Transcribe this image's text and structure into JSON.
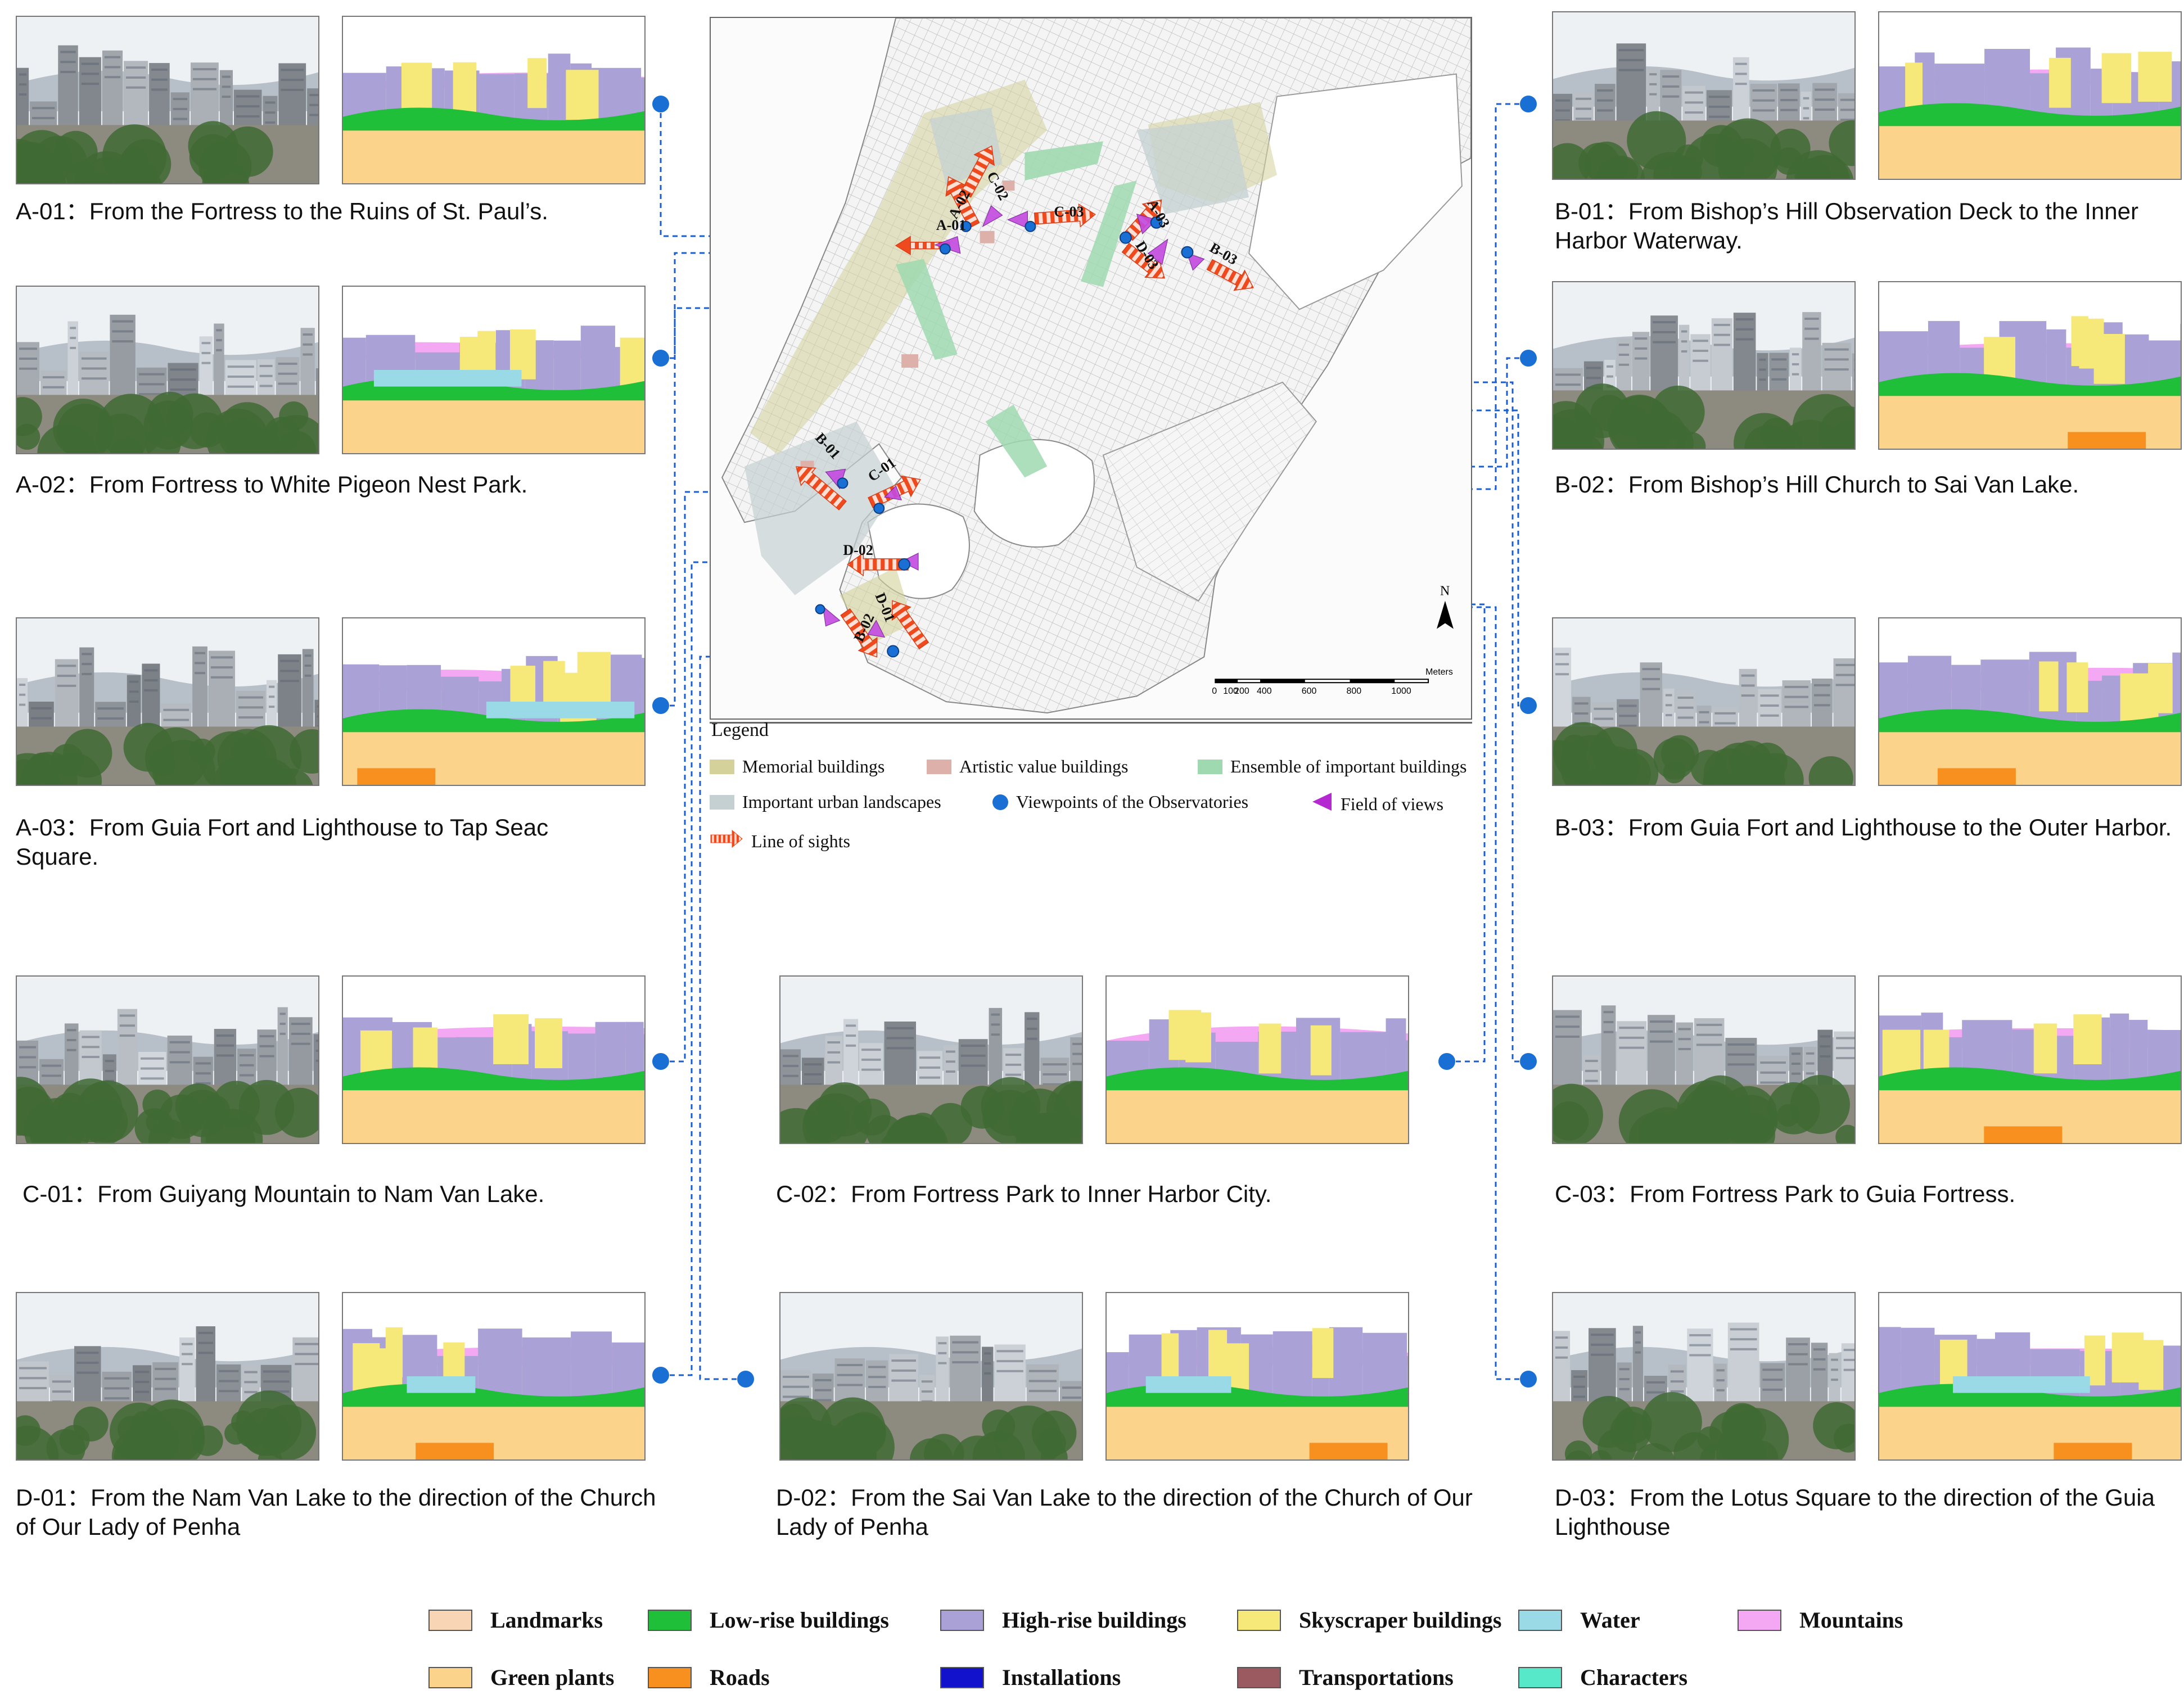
{
  "views": [
    {
      "id": "A-01",
      "caption": "From the Fortress to the Ruins of St. Paul’s."
    },
    {
      "id": "A-02",
      "caption": "From Fortress to White Pigeon Nest Park."
    },
    {
      "id": "A-03",
      "caption": "From Guia Fort and Lighthouse to Tap Seac Square."
    },
    {
      "id": "C-01",
      "caption": "From Guiyang Mountain to Nam Van Lake."
    },
    {
      "id": "D-01",
      "caption": "From the Nam Van Lake to the direction of the Church of Our Lady of Penha"
    },
    {
      "id": "C-02",
      "caption": "From Fortress Park to Inner Harbor City."
    },
    {
      "id": "D-02",
      "caption": "From the Sai Van Lake to the direction of the Church of Our Lady of Penha"
    },
    {
      "id": "B-01",
      "caption": "From Bishop’s Hill Observation Deck to the Inner Harbor Waterway."
    },
    {
      "id": "B-02",
      "caption": "From Bishop’s Hill Church to Sai Van Lake."
    },
    {
      "id": "B-03",
      "caption": "From Guia Fort and Lighthouse to the Outer Harbor."
    },
    {
      "id": "C-03",
      "caption": "From Fortress Park to Guia Fortress."
    },
    {
      "id": "D-03",
      "caption": "From the Lotus Square to the direction of the Guia Lighthouse"
    }
  ],
  "map": {
    "north": "N",
    "scale_ticks": [
      "0",
      "100",
      "200",
      "400",
      "600",
      "800",
      "1000"
    ],
    "scale_unit": "Meters",
    "labels": [
      "A-01",
      "A-02",
      "A-03",
      "B-01",
      "B-02",
      "B-03",
      "C-01",
      "C-02",
      "C-03",
      "D-01",
      "D-02",
      "D-03"
    ]
  },
  "map_legend": {
    "title": "Legend",
    "items": [
      {
        "label": "Memorial buildings",
        "color": "#d4d29a",
        "icon": "swatch"
      },
      {
        "label": "Artistic value buildings",
        "color": "#ddb0aa",
        "icon": "swatch"
      },
      {
        "label": "Ensemble of important buildings",
        "color": "#9fd9b0",
        "icon": "swatch"
      },
      {
        "label": "Important urban landscapes",
        "color": "#c4d0d2",
        "icon": "swatch"
      },
      {
        "label": "Viewpoints of the Observatories",
        "color": "#1a6fd4",
        "icon": "dot"
      },
      {
        "label": "Field of views",
        "color": "#b42ad0",
        "icon": "fan"
      },
      {
        "label": "Line of sights",
        "color": "#ee4a1e",
        "icon": "arrow"
      }
    ]
  },
  "class_legend": [
    {
      "label": "Landmarks",
      "color": "#f8d5b5"
    },
    {
      "label": "Low-rise buildings",
      "color": "#1fbf3a"
    },
    {
      "label": "High-rise buildings",
      "color": "#aaa2d6"
    },
    {
      "label": "Skyscraper buildings",
      "color": "#f6e97a"
    },
    {
      "label": "Water",
      "color": "#9ad9e6"
    },
    {
      "label": "Mountains",
      "color": "#f4a8f4"
    },
    {
      "label": "Green plants",
      "color": "#fcd38a"
    },
    {
      "label": "Roads",
      "color": "#f7901f"
    },
    {
      "label": "Installations",
      "color": "#1212cc"
    },
    {
      "label": "Transportations",
      "color": "#9a5a60"
    },
    {
      "label": "Characters",
      "color": "#56e8c8"
    }
  ]
}
